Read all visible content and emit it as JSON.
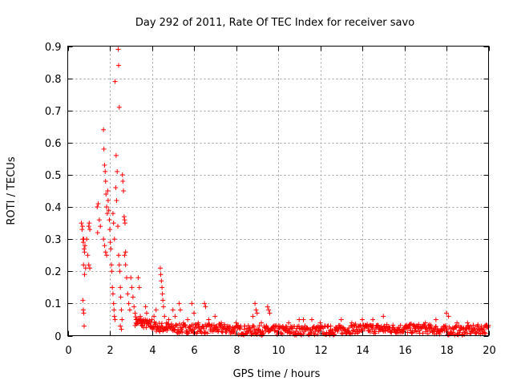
{
  "chart_data": {
    "type": "scatter",
    "title": "Day 292 of 2011, Rate Of TEC Index for receiver savo",
    "xlabel": "GPS time / hours",
    "ylabel": "ROTI / TECUs",
    "xlim": [
      0,
      20
    ],
    "ylim": [
      0,
      0.9
    ],
    "xticks": [
      0,
      2,
      4,
      6,
      8,
      10,
      12,
      14,
      16,
      18,
      20
    ],
    "yticks": [
      0,
      0.1,
      0.2,
      0.3,
      0.4,
      0.5,
      0.6,
      0.7,
      0.8,
      0.9
    ],
    "grid": true,
    "marker": "plus",
    "color": "#ff0000",
    "points": [
      [
        0.65,
        0.35
      ],
      [
        0.68,
        0.33
      ],
      [
        0.7,
        0.34
      ],
      [
        0.72,
        0.3
      ],
      [
        0.74,
        0.29
      ],
      [
        0.76,
        0.3
      ],
      [
        0.78,
        0.27
      ],
      [
        0.8,
        0.26
      ],
      [
        0.82,
        0.28
      ],
      [
        0.75,
        0.22
      ],
      [
        0.8,
        0.19
      ],
      [
        0.85,
        0.21
      ],
      [
        0.72,
        0.11
      ],
      [
        0.74,
        0.08
      ],
      [
        0.76,
        0.07
      ],
      [
        0.78,
        0.03
      ],
      [
        0.9,
        0.3
      ],
      [
        0.95,
        0.25
      ],
      [
        1.0,
        0.34
      ],
      [
        1.02,
        0.35
      ],
      [
        1.05,
        0.33
      ],
      [
        1.0,
        0.22
      ],
      [
        1.05,
        0.21
      ],
      [
        1.4,
        0.4
      ],
      [
        1.45,
        0.41
      ],
      [
        1.5,
        0.36
      ],
      [
        1.42,
        0.32
      ],
      [
        1.55,
        0.34
      ],
      [
        1.7,
        0.64
      ],
      [
        1.72,
        0.58
      ],
      [
        1.75,
        0.53
      ],
      [
        1.78,
        0.51
      ],
      [
        1.8,
        0.48
      ],
      [
        1.82,
        0.44
      ],
      [
        1.85,
        0.4
      ],
      [
        1.88,
        0.38
      ],
      [
        1.7,
        0.3
      ],
      [
        1.75,
        0.28
      ],
      [
        1.8,
        0.26
      ],
      [
        1.85,
        0.25
      ],
      [
        1.9,
        0.45
      ],
      [
        1.92,
        0.42
      ],
      [
        1.95,
        0.39
      ],
      [
        1.98,
        0.36
      ],
      [
        2.0,
        0.33
      ],
      [
        2.02,
        0.29
      ],
      [
        2.05,
        0.27
      ],
      [
        2.08,
        0.22
      ],
      [
        2.1,
        0.2
      ],
      [
        2.12,
        0.15
      ],
      [
        2.15,
        0.13
      ],
      [
        2.18,
        0.1
      ],
      [
        2.2,
        0.08
      ],
      [
        2.22,
        0.06
      ],
      [
        2.25,
        0.05
      ],
      [
        2.15,
        0.38
      ],
      [
        2.18,
        0.35
      ],
      [
        2.25,
        0.79
      ],
      [
        2.3,
        0.56
      ],
      [
        2.35,
        0.51
      ],
      [
        2.28,
        0.46
      ],
      [
        2.32,
        0.42
      ],
      [
        2.22,
        0.3
      ],
      [
        2.4,
        0.89
      ],
      [
        2.42,
        0.84
      ],
      [
        2.45,
        0.71
      ],
      [
        2.38,
        0.34
      ],
      [
        2.42,
        0.25
      ],
      [
        2.45,
        0.22
      ],
      [
        2.48,
        0.2
      ],
      [
        2.5,
        0.15
      ],
      [
        2.52,
        0.12
      ],
      [
        2.55,
        0.08
      ],
      [
        2.58,
        0.05
      ],
      [
        2.5,
        0.03
      ],
      [
        2.55,
        0.02
      ],
      [
        2.6,
        0.5
      ],
      [
        2.62,
        0.48
      ],
      [
        2.65,
        0.45
      ],
      [
        2.68,
        0.37
      ],
      [
        2.7,
        0.36
      ],
      [
        2.72,
        0.35
      ],
      [
        2.75,
        0.26
      ],
      [
        2.7,
        0.25
      ],
      [
        2.75,
        0.22
      ],
      [
        2.8,
        0.18
      ],
      [
        2.85,
        0.13
      ],
      [
        2.9,
        0.1
      ],
      [
        2.95,
        0.08
      ],
      [
        3.0,
        0.18
      ],
      [
        3.05,
        0.15
      ],
      [
        3.1,
        0.12
      ],
      [
        3.15,
        0.09
      ],
      [
        3.2,
        0.07
      ],
      [
        3.25,
        0.05
      ],
      [
        3.3,
        0.04
      ],
      [
        3.35,
        0.18
      ],
      [
        3.4,
        0.15
      ],
      [
        3.45,
        0.06
      ],
      [
        3.5,
        0.04
      ],
      [
        3.55,
        0.03
      ],
      [
        3.6,
        0.05
      ],
      [
        3.7,
        0.09
      ],
      [
        3.75,
        0.07
      ],
      [
        3.8,
        0.04
      ],
      [
        3.9,
        0.03
      ],
      [
        4.0,
        0.05
      ],
      [
        4.1,
        0.06
      ],
      [
        4.2,
        0.08
      ],
      [
        4.4,
        0.21
      ],
      [
        4.42,
        0.19
      ],
      [
        4.45,
        0.17
      ],
      [
        4.48,
        0.15
      ],
      [
        4.5,
        0.13
      ],
      [
        4.52,
        0.11
      ],
      [
        4.55,
        0.09
      ],
      [
        4.6,
        0.06
      ],
      [
        4.7,
        0.04
      ],
      [
        4.8,
        0.05
      ],
      [
        4.9,
        0.03
      ],
      [
        5.0,
        0.08
      ],
      [
        5.1,
        0.06
      ],
      [
        5.3,
        0.1
      ],
      [
        5.35,
        0.08
      ],
      [
        5.5,
        0.04
      ],
      [
        5.7,
        0.05
      ],
      [
        5.9,
        0.1
      ],
      [
        6.0,
        0.07
      ],
      [
        6.2,
        0.04
      ],
      [
        6.5,
        0.1
      ],
      [
        6.55,
        0.09
      ],
      [
        6.7,
        0.05
      ],
      [
        7.0,
        0.06
      ],
      [
        7.3,
        0.04
      ],
      [
        7.6,
        0.03
      ],
      [
        8.0,
        0.04
      ],
      [
        8.4,
        0.03
      ],
      [
        8.8,
        0.06
      ],
      [
        8.9,
        0.1
      ],
      [
        8.95,
        0.08
      ],
      [
        9.0,
        0.07
      ],
      [
        9.2,
        0.04
      ],
      [
        9.5,
        0.09
      ],
      [
        9.55,
        0.08
      ],
      [
        9.6,
        0.07
      ],
      [
        10.0,
        0.03
      ],
      [
        10.5,
        0.04
      ],
      [
        11.0,
        0.05
      ],
      [
        11.2,
        0.05
      ],
      [
        11.6,
        0.05
      ],
      [
        12.0,
        0.04
      ],
      [
        12.5,
        0.03
      ],
      [
        13.0,
        0.05
      ],
      [
        13.5,
        0.04
      ],
      [
        14.0,
        0.05
      ],
      [
        14.5,
        0.05
      ],
      [
        15.0,
        0.06
      ],
      [
        15.5,
        0.02
      ],
      [
        16.0,
        0.02
      ],
      [
        16.5,
        0.03
      ],
      [
        17.0,
        0.04
      ],
      [
        17.5,
        0.05
      ],
      [
        18.0,
        0.07
      ],
      [
        18.1,
        0.06
      ],
      [
        18.5,
        0.04
      ],
      [
        19.0,
        0.04
      ],
      [
        19.5,
        0.03
      ],
      [
        19.9,
        0.03
      ]
    ],
    "bands": [
      {
        "x": [
          3.2,
          20.0
        ],
        "base": [
          0.045,
          0.025,
          0.02,
          0.02,
          0.02,
          0.015,
          0.015,
          0.015,
          0.015,
          0.015,
          0.02,
          0.02,
          0.02,
          0.02,
          0.015,
          0.015,
          0.02
        ],
        "spread": 0.03
      }
    ]
  }
}
